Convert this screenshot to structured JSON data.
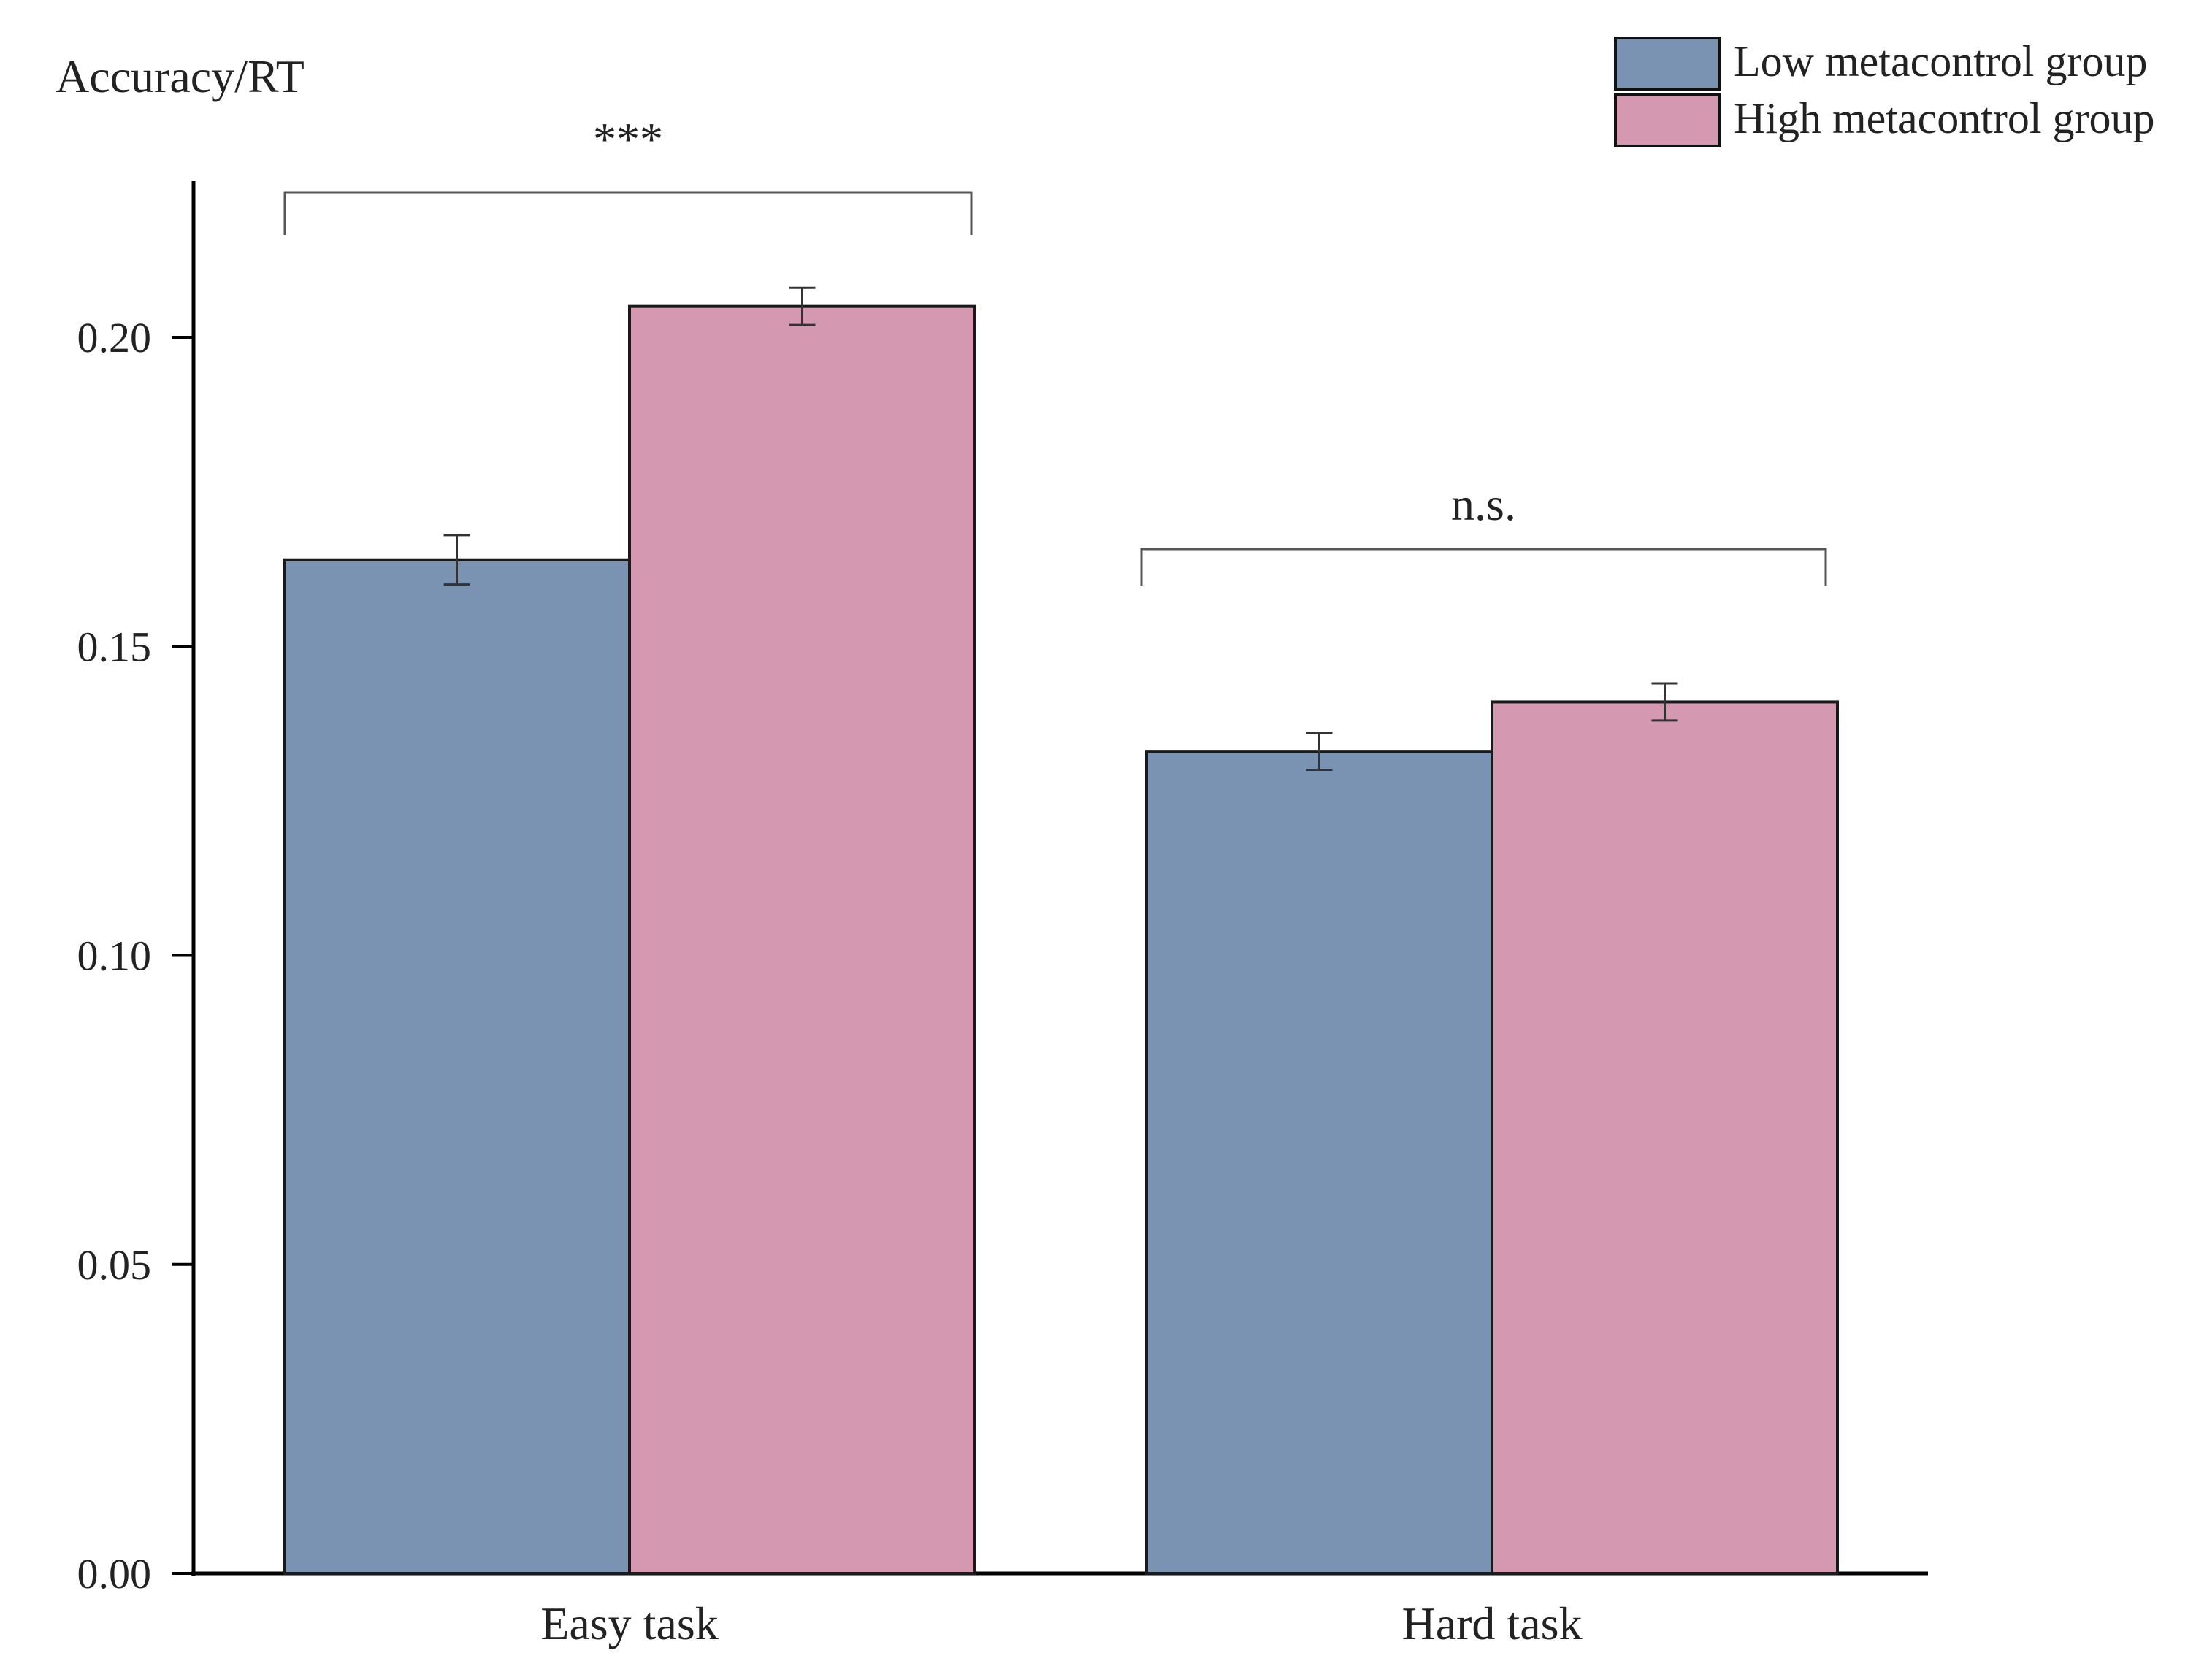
{
  "chart_data": {
    "type": "bar",
    "ylabel": "Accuracy/RT",
    "xlabel": "",
    "categories": [
      "Easy task",
      "Hard task"
    ],
    "series": [
      {
        "name": "Low metacontrol group",
        "values": [
          0.164,
          0.133
        ],
        "errors": [
          0.004,
          0.003
        ],
        "color": "#7a93b3"
      },
      {
        "name": "High metacontrol group",
        "values": [
          0.205,
          0.141
        ],
        "errors": [
          0.003,
          0.003
        ],
        "color": "#d498b0"
      }
    ],
    "ylim": [
      0,
      0.22
    ],
    "yticks": [
      0.0,
      0.05,
      0.1,
      0.15,
      0.2
    ],
    "ytick_labels": [
      "0.00",
      "0.05",
      "0.10",
      "0.15",
      "0.20"
    ],
    "annotations": [
      {
        "category": "Easy task",
        "text": "***"
      },
      {
        "category": "Hard task",
        "text": "n.s."
      }
    ],
    "legend_position": "top-right",
    "grid": false
  }
}
